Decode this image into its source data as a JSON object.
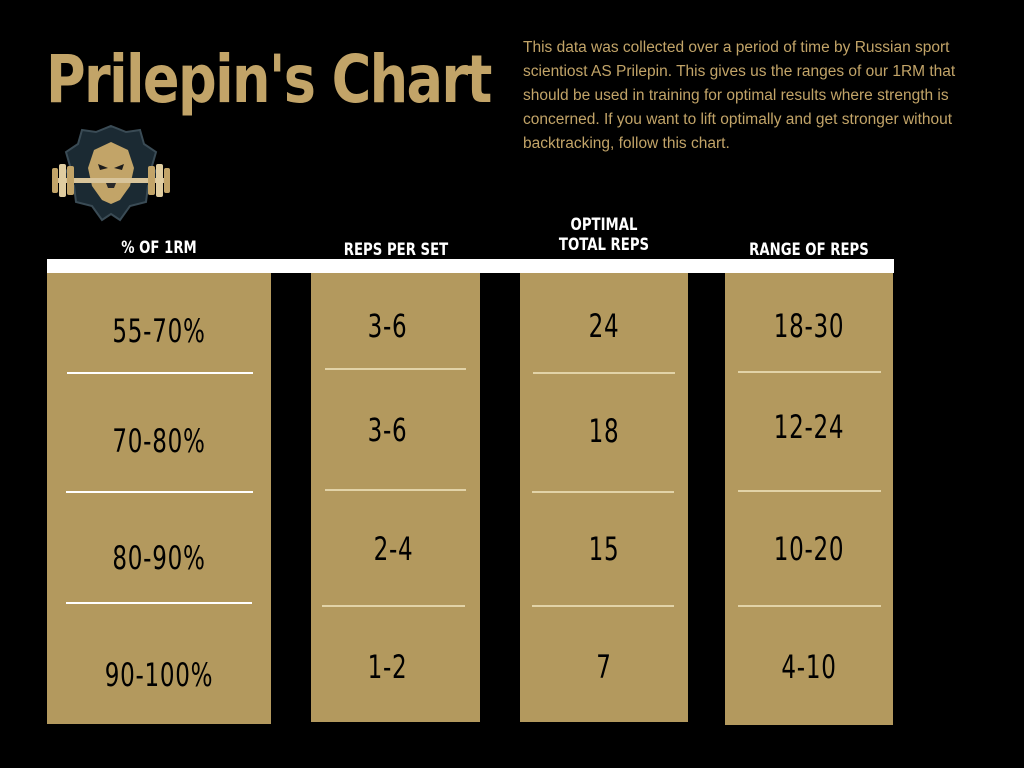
{
  "title": "Prilepin's Chart",
  "description": "This data was collected over a period of time by Russian sport scientiost AS Prilepin. This gives us the ranges of our 1RM that should be used in training for optimal results where strength is concerned. If you want to lift optimally and get stronger without backtracking, follow this chart.",
  "logo_icon": "lion-barbell-logo-icon",
  "colors": {
    "background": "#000000",
    "accent": "#c2a468",
    "column": "#b3995e",
    "header_text": "#ffffff"
  },
  "columns": [
    {
      "header": "% OF 1RM",
      "values": [
        "55-70%",
        "70-80%",
        "80-90%",
        "90-100%"
      ]
    },
    {
      "header": "REPS PER SET",
      "values": [
        "3-6",
        "3-6",
        "2-4",
        "1-2"
      ]
    },
    {
      "header": "OPTIMAL TOTAL REPS",
      "values": [
        "24",
        "18",
        "15",
        "7"
      ]
    },
    {
      "header": "RANGE OF REPS",
      "values": [
        "18-30",
        "12-24",
        "10-20",
        "4-10"
      ]
    }
  ]
}
